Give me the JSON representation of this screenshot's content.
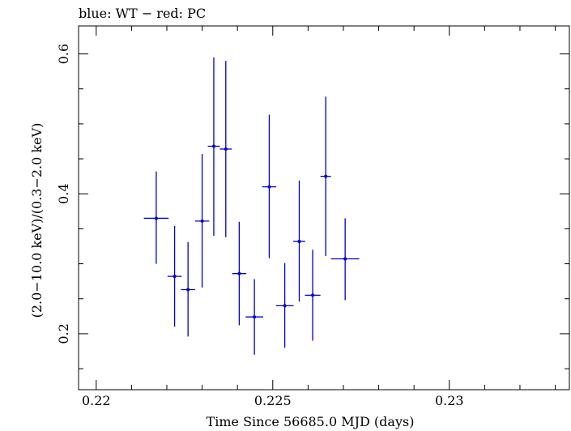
{
  "chart_data": {
    "type": "scatter",
    "title": "blue: WT − red: PC",
    "xlabel": "Time Since 56685.0 MJD (days)",
    "ylabel": "(2.0−10.0 keV)/(0.3−2.0 keV)",
    "xlim": [
      0.2195,
      0.2334
    ],
    "ylim": [
      0.12,
      0.64
    ],
    "xticks": [
      {
        "value": 0.22,
        "label": "0.22"
      },
      {
        "value": 0.225,
        "label": "0.225"
      },
      {
        "value": 0.23,
        "label": "0.23"
      }
    ],
    "yticks": [
      {
        "value": 0.2,
        "label": "0.2"
      },
      {
        "value": 0.4,
        "label": "0.4"
      },
      {
        "value": 0.6,
        "label": "0.6"
      }
    ],
    "grid": false,
    "series": [
      {
        "color": "#0000cc",
        "points": [
          {
            "x": 0.2217,
            "xerr": 0.00035,
            "y": 0.365,
            "ylo": 0.3,
            "yhi": 0.432
          },
          {
            "x": 0.22222,
            "xerr": 0.0002,
            "y": 0.282,
            "ylo": 0.21,
            "yhi": 0.354
          },
          {
            "x": 0.2226,
            "xerr": 0.0002,
            "y": 0.263,
            "ylo": 0.196,
            "yhi": 0.331
          },
          {
            "x": 0.223,
            "xerr": 0.0002,
            "y": 0.361,
            "ylo": 0.266,
            "yhi": 0.457
          },
          {
            "x": 0.22333,
            "xerr": 0.00017,
            "y": 0.468,
            "ylo": 0.34,
            "yhi": 0.595
          },
          {
            "x": 0.22367,
            "xerr": 0.00017,
            "y": 0.464,
            "ylo": 0.338,
            "yhi": 0.59
          },
          {
            "x": 0.22405,
            "xerr": 0.0002,
            "y": 0.286,
            "ylo": 0.212,
            "yhi": 0.36
          },
          {
            "x": 0.22448,
            "xerr": 0.00025,
            "y": 0.224,
            "ylo": 0.17,
            "yhi": 0.278
          },
          {
            "x": 0.2249,
            "xerr": 0.0002,
            "y": 0.41,
            "ylo": 0.308,
            "yhi": 0.513
          },
          {
            "x": 0.22534,
            "xerr": 0.00025,
            "y": 0.24,
            "ylo": 0.18,
            "yhi": 0.301
          },
          {
            "x": 0.22575,
            "xerr": 0.00017,
            "y": 0.332,
            "ylo": 0.246,
            "yhi": 0.419
          },
          {
            "x": 0.22613,
            "xerr": 0.00022,
            "y": 0.255,
            "ylo": 0.19,
            "yhi": 0.32
          },
          {
            "x": 0.2265,
            "xerr": 0.00015,
            "y": 0.425,
            "ylo": 0.311,
            "yhi": 0.539
          },
          {
            "x": 0.22705,
            "xerr": 0.0004,
            "y": 0.307,
            "ylo": 0.248,
            "yhi": 0.365
          }
        ]
      }
    ]
  }
}
